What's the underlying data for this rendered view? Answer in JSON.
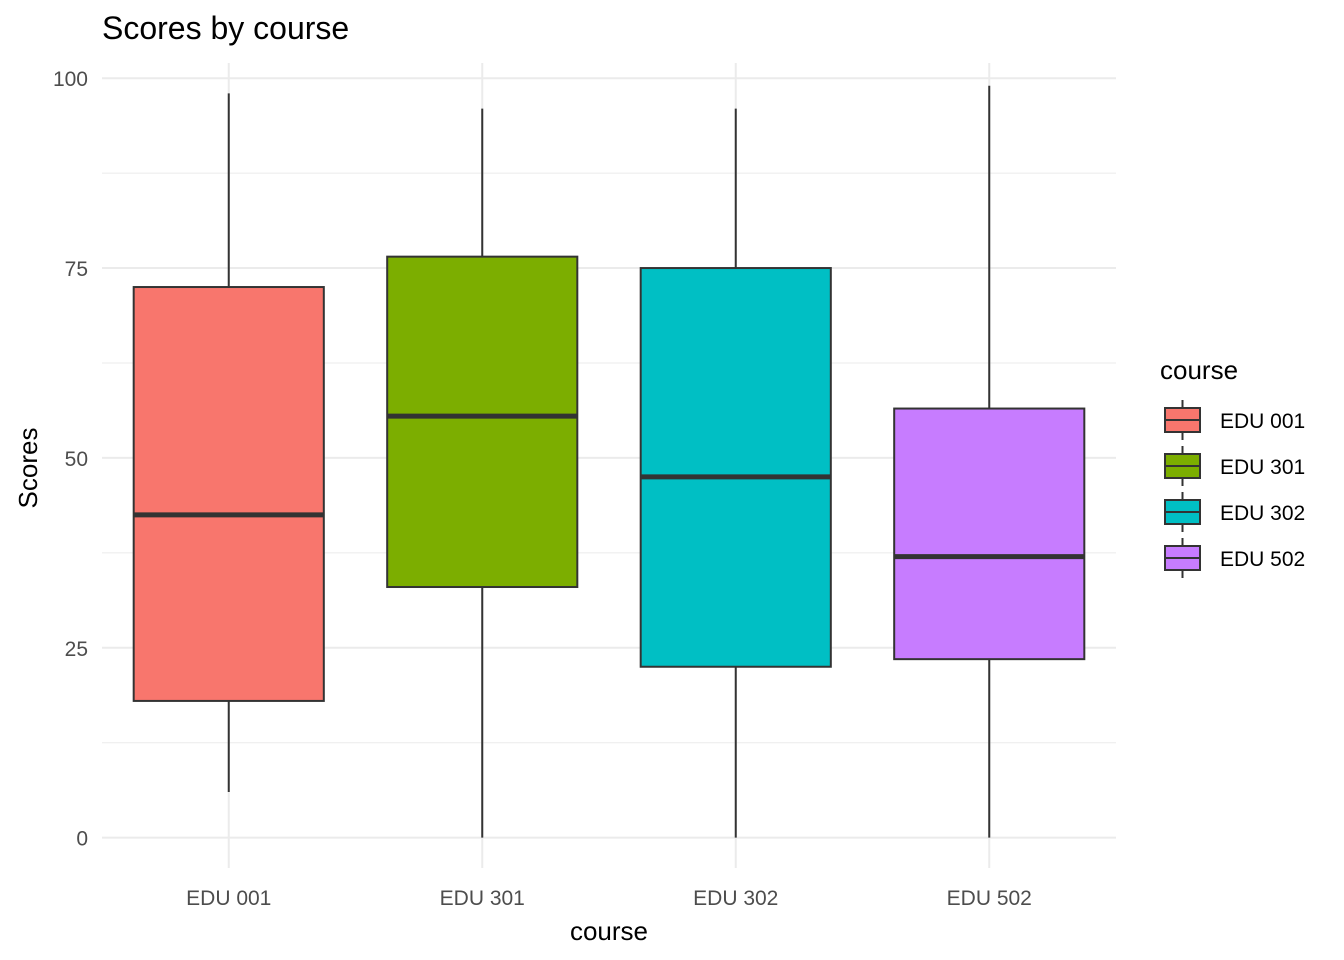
{
  "chart_data": {
    "type": "boxplot",
    "title": "Scores by course",
    "xlabel": "course",
    "ylabel": "Scores",
    "ylim": [
      -4,
      102
    ],
    "yticks": [
      0,
      25,
      50,
      75,
      100
    ],
    "grid": true,
    "legend": {
      "title": "course",
      "position": "right"
    },
    "categories": [
      "EDU 001",
      "EDU 301",
      "EDU 302",
      "EDU 502"
    ],
    "colors": [
      "#F8766D",
      "#7CAE00",
      "#00BFC4",
      "#C77CFF"
    ],
    "series": [
      {
        "name": "EDU 001",
        "min": 6,
        "q1": 18,
        "median": 42.5,
        "q3": 72.5,
        "max": 98
      },
      {
        "name": "EDU 301",
        "min": 0,
        "q1": 33,
        "median": 55.5,
        "q3": 76.5,
        "max": 96
      },
      {
        "name": "EDU 302",
        "min": 0,
        "q1": 22.5,
        "median": 47.5,
        "q3": 75,
        "max": 96
      },
      {
        "name": "EDU 502",
        "min": 0,
        "q1": 23.5,
        "median": 37,
        "q3": 56.5,
        "max": 99
      }
    ]
  }
}
